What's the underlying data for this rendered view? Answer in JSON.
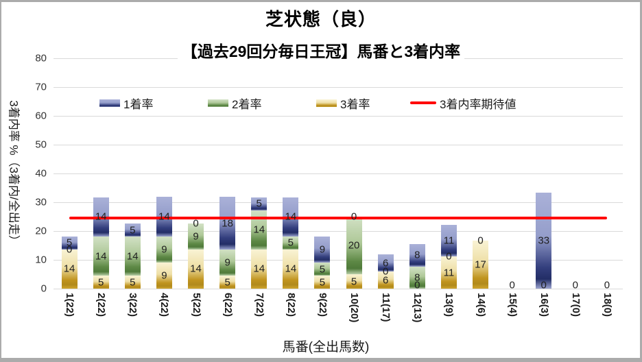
{
  "window": {
    "border_color": "#ababab",
    "background": "#ffffff"
  },
  "chart_data": {
    "type": "bar",
    "stacked": true,
    "title": "芝状態（良）",
    "subtitle": "【過去29回分毎日王冠】馬番と3着内率",
    "ylabel": "3着内率 %（3着内/全出走）",
    "xlabel": "馬番(全出馬数)",
    "ylim": [
      0,
      80
    ],
    "ytick_step": 10,
    "ytick_labels": [
      "0",
      "10",
      "20",
      "30",
      "40",
      "50",
      "60",
      "70",
      "80"
    ],
    "grid": true,
    "legend_position": "top-inside",
    "categories": [
      "1(22)",
      "2(22)",
      "3(22)",
      "4(22)",
      "5(22)",
      "6(22)",
      "7(22)",
      "8(22)",
      "9(22)",
      "10(20)",
      "11(17)",
      "12(13)",
      "13(9)",
      "14(6)",
      "15(4)",
      "16(3)",
      "17(0)",
      "18(0)"
    ],
    "series": [
      {
        "name": "3着率",
        "role": "third",
        "values": [
          13.6,
          4.5,
          4.5,
          9.1,
          13.6,
          4.5,
          13.6,
          13.6,
          4.5,
          5.0,
          5.9,
          0,
          11.1,
          16.7,
          0,
          0,
          0,
          0
        ],
        "labels": [
          "14",
          "5",
          "5",
          "9",
          "14",
          "5",
          "14",
          "14",
          "5",
          "5",
          "6",
          "0",
          "11",
          "17",
          "0",
          "0",
          "0",
          "0"
        ],
        "fill": {
          "light": "#f9f3d5",
          "mid": "#eedfa6",
          "dark": "#c0941f",
          "deep": "#b18a1c",
          "edge": "#cfa52e"
        }
      },
      {
        "name": "2着率",
        "role": "second",
        "values": [
          0,
          13.6,
          13.6,
          9.1,
          9.1,
          9.1,
          13.6,
          4.5,
          4.5,
          20.0,
          0,
          7.7,
          0,
          0,
          0,
          0,
          0,
          0
        ],
        "labels": [
          "0",
          "14",
          "14",
          "9",
          "9",
          "9",
          "14",
          "5",
          "5",
          "20",
          "0",
          "8",
          "0",
          "0",
          "0",
          "0",
          "0",
          "0"
        ],
        "fill": {
          "light": "#d2e1c5",
          "mid": "#aec898",
          "dark": "#5d8845",
          "deep": "#4f7a3a",
          "edge": "#b9d0a9"
        }
      },
      {
        "name": "1着率",
        "role": "first",
        "values": [
          4.5,
          13.6,
          4.5,
          13.6,
          0,
          18.2,
          4.5,
          13.6,
          9.1,
          0,
          5.9,
          7.7,
          11.1,
          0,
          0,
          33.3,
          0,
          0
        ],
        "labels": [
          "5",
          "14",
          "5",
          "14",
          "0",
          "18",
          "5",
          "14",
          "9",
          "0",
          "6",
          "8",
          "11",
          "0",
          "0",
          "33",
          "0",
          "0"
        ],
        "fill": {
          "light": "#aab1d8",
          "mid": "#959ecb",
          "dark": "#333e7d",
          "deep": "#232e66",
          "edge": "#9ca4d0"
        }
      }
    ],
    "expectation_line": {
      "name": "3着内率期待値",
      "value": 24.5,
      "color": "#ff0000"
    },
    "legend": [
      {
        "label": "1着率",
        "swatch": "first"
      },
      {
        "label": "2着率",
        "swatch": "second"
      },
      {
        "label": "3着率",
        "swatch": "third"
      },
      {
        "label": "3着内率期待値",
        "swatch": "line"
      }
    ],
    "gridline_color": "#d9d9d9"
  }
}
